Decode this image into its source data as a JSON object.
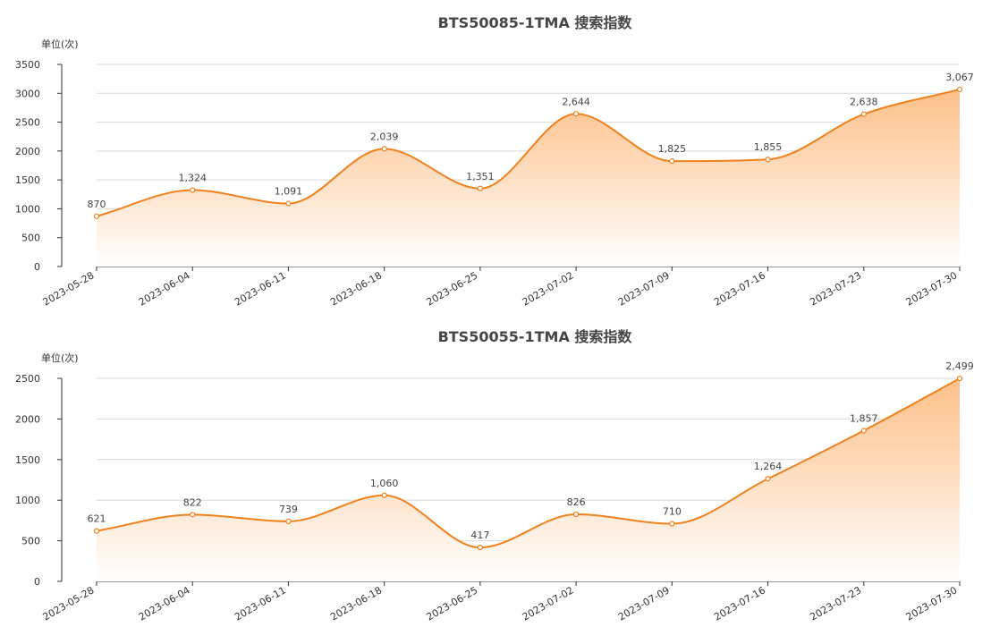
{
  "colors": {
    "line": "#f0821e",
    "fill_top": "#fdbf88",
    "fill_bottom": "#ffffff",
    "grid": "#d9d9d9",
    "axis": "#333333"
  },
  "chart_data": [
    {
      "type": "area",
      "title": "BTS50085-1TMA 搜索指数",
      "unit_label": "单位(次)",
      "categories": [
        "2023-05-28",
        "2023-06-04",
        "2023-06-11",
        "2023-06-18",
        "2023-06-25",
        "2023-07-02",
        "2023-07-09",
        "2023-07-16",
        "2023-07-23",
        "2023-07-30"
      ],
      "values": [
        870,
        1324,
        1091,
        2039,
        1351,
        2644,
        1825,
        1855,
        2638,
        3067
      ],
      "value_labels": [
        "870",
        "1,324",
        "1,091",
        "2,039",
        "1,351",
        "2,644",
        "1,825",
        "1,855",
        "2,638",
        "3,067"
      ],
      "yticks": [
        "0",
        "500",
        "1000",
        "1500",
        "2000",
        "2500",
        "3000",
        "3500"
      ],
      "ylim": [
        0,
        3500
      ],
      "grid": true,
      "smooth": true
    },
    {
      "type": "area",
      "title": "BTS50055-1TMA 搜索指数",
      "unit_label": "单位(次)",
      "categories": [
        "2023-05-28",
        "2023-06-04",
        "2023-06-11",
        "2023-06-18",
        "2023-06-25",
        "2023-07-02",
        "2023-07-09",
        "2023-07-16",
        "2023-07-23",
        "2023-07-30"
      ],
      "values": [
        621,
        822,
        739,
        1060,
        417,
        826,
        710,
        1264,
        1857,
        2499
      ],
      "value_labels": [
        "621",
        "822",
        "739",
        "1,060",
        "417",
        "826",
        "710",
        "1,264",
        "1,857",
        "2,499"
      ],
      "yticks": [
        "0",
        "500",
        "1000",
        "1500",
        "2000",
        "2500"
      ],
      "ylim": [
        0,
        2500
      ],
      "grid": true,
      "smooth": true
    }
  ]
}
